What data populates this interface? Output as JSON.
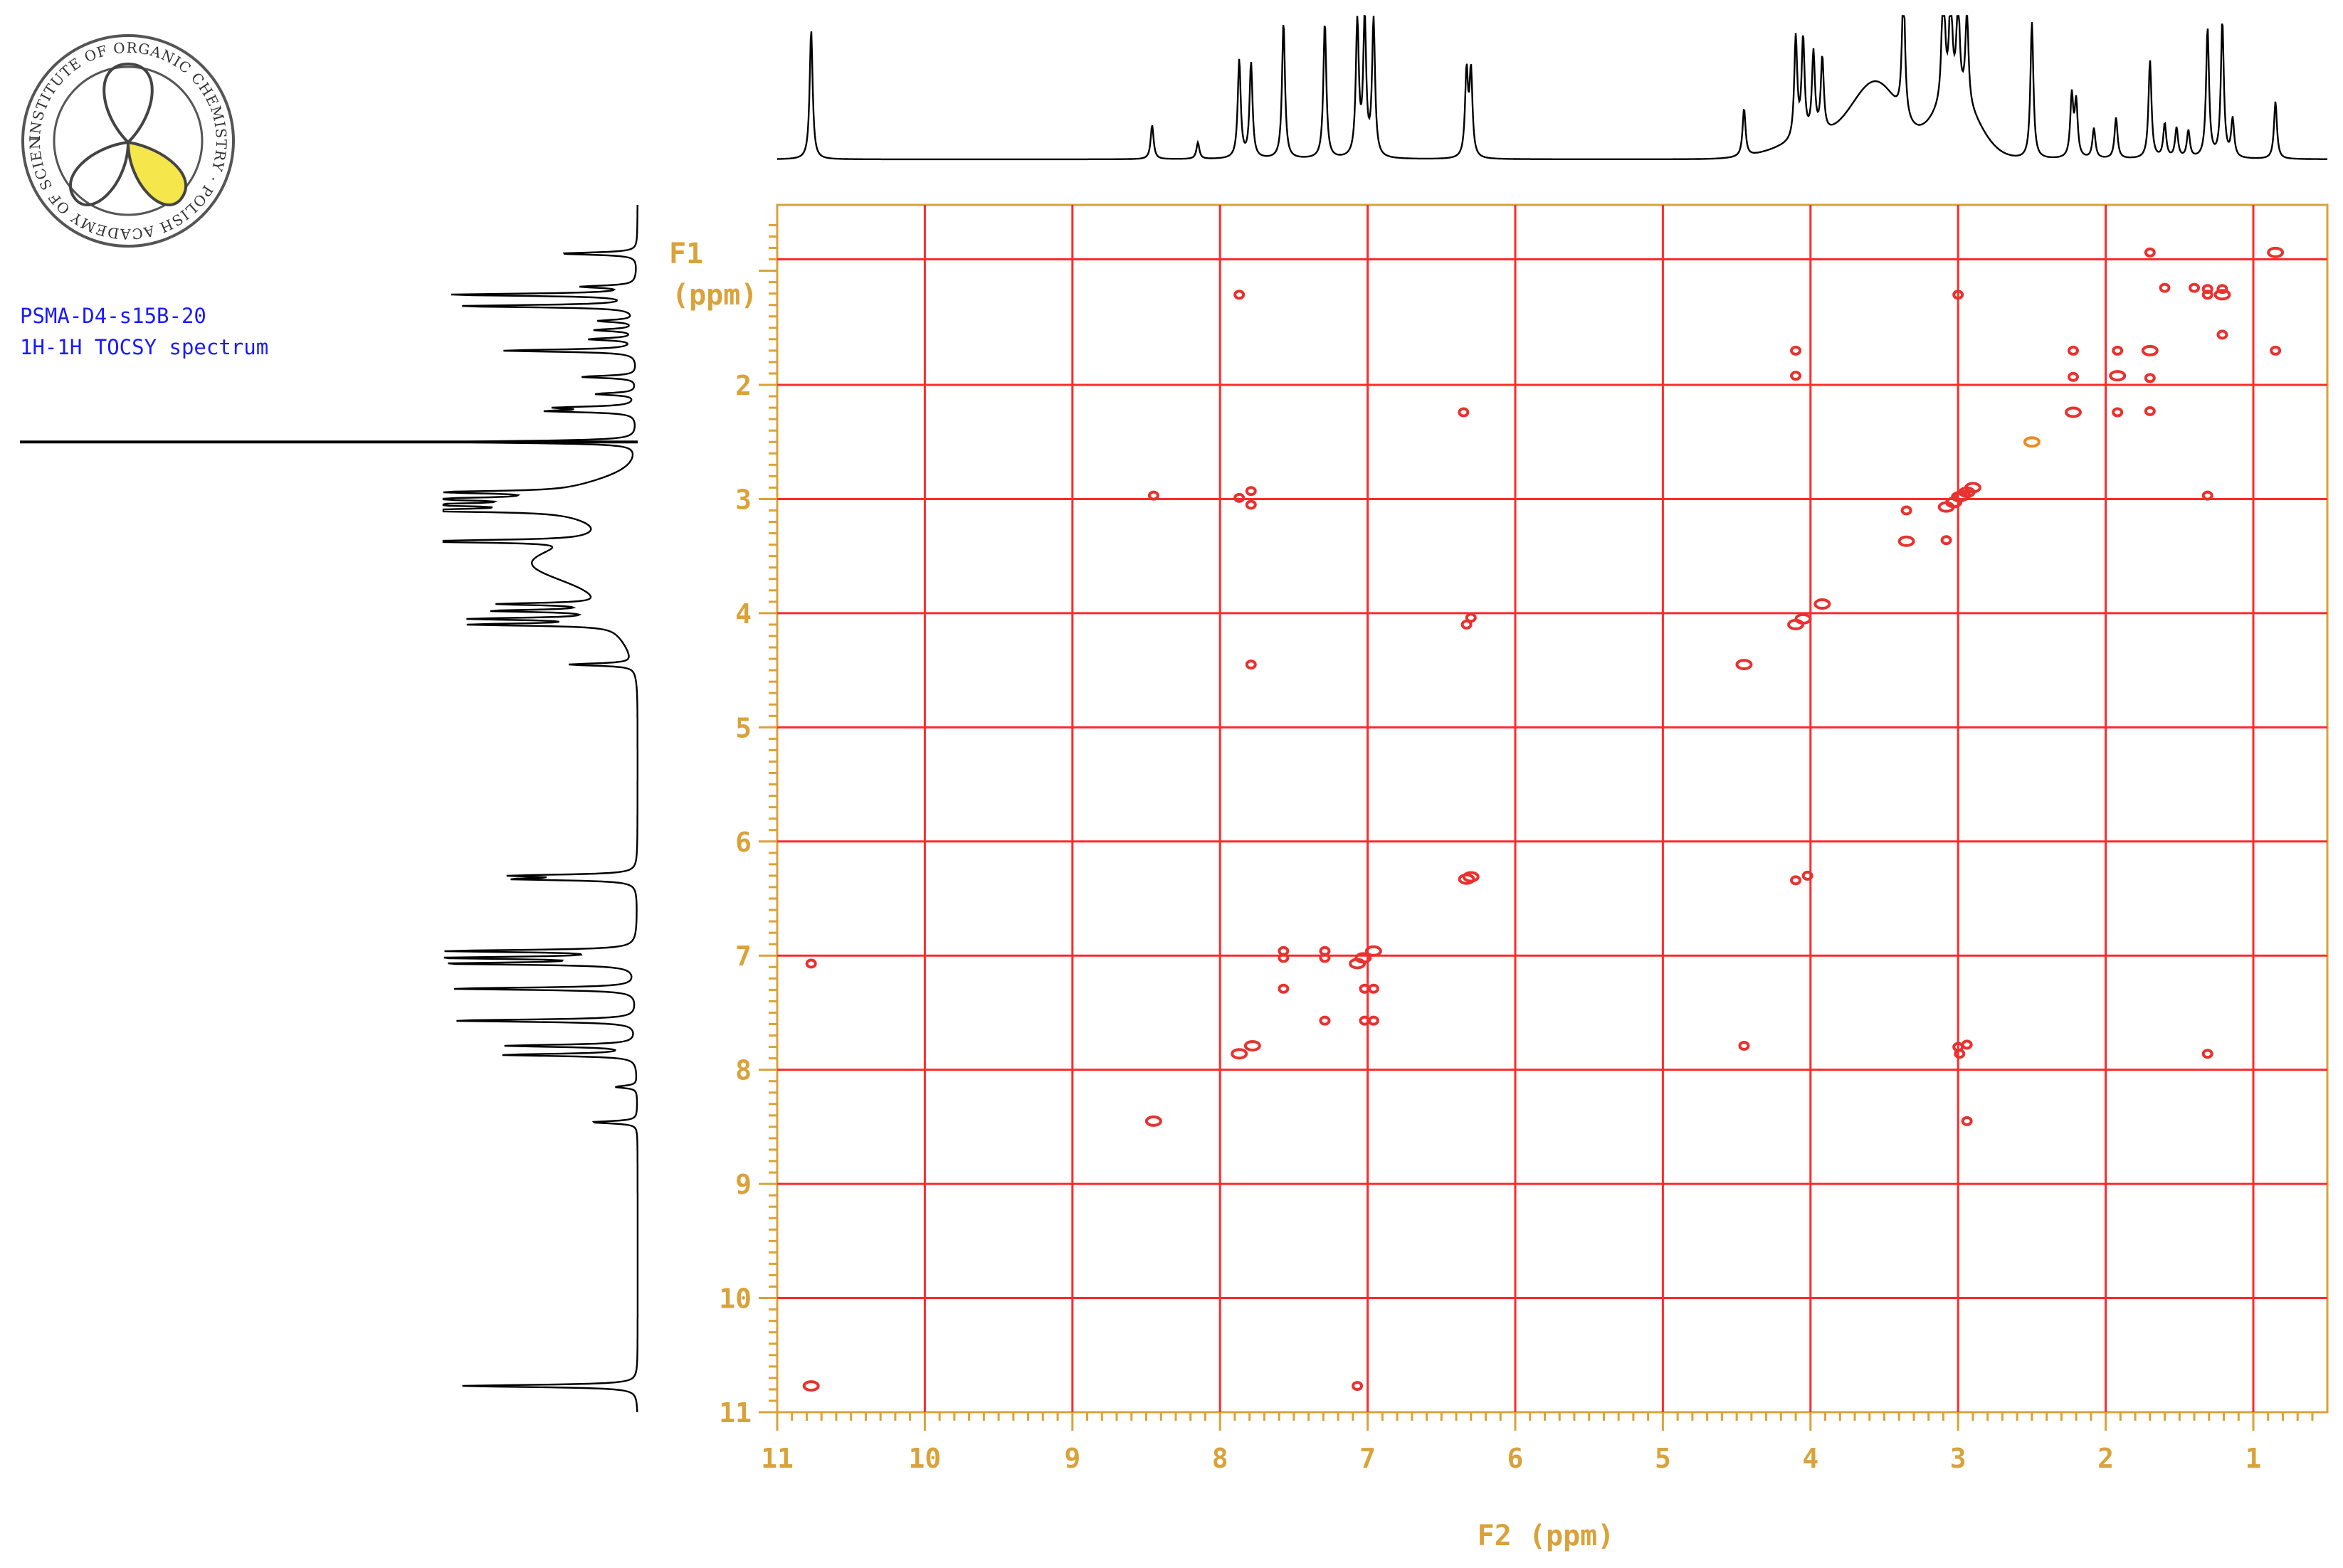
{
  "logo": {
    "text": "INSTITUTE OF ORGANIC CHEMISTRY · POLISH ACADEMY OF SCIENCES",
    "lobe_color": "#f4e64b"
  },
  "sample": {
    "name": "PSMA-D4-s15B-20",
    "experiment": "1H-1H TOCSY spectrum"
  },
  "chart_data": {
    "type": "scatter",
    "subtype": "2D NMR TOCSY contour plot with 1D projections",
    "xlabel": "F2 (ppm)",
    "ylabel_line1": "F1",
    "ylabel_line2": "(ppm)",
    "xlim": [
      11,
      0.5
    ],
    "ylim": [
      0.55,
      11
    ],
    "x_ticks": [
      11,
      10,
      9,
      8,
      7,
      6,
      5,
      4,
      3,
      2,
      1
    ],
    "y_ticks": [
      2,
      3,
      4,
      5,
      6,
      7,
      8,
      9,
      10,
      11
    ],
    "x_tick_labels": [
      "11",
      "10",
      "9",
      "8",
      "7",
      "6",
      "5",
      "4",
      "3",
      "2",
      "1"
    ],
    "y_tick_labels": [
      "2",
      "3",
      "4",
      "5",
      "6",
      "7",
      "8",
      "9",
      "10",
      "11"
    ],
    "extra_grid_y": 0.9,
    "grid": true,
    "colors": {
      "grid": "#ff2a2a",
      "frame": "#d9a23a",
      "cross_peak": "#e8322f",
      "diagonal_peak": "#e8322f",
      "orange_peak": "#f08a1c",
      "trace": "#000000"
    },
    "peaks": [
      [
        10.77,
        7.07
      ],
      [
        7.07,
        10.77
      ],
      [
        10.77,
        10.77
      ],
      [
        8.45,
        2.97
      ],
      [
        8.45,
        8.45
      ],
      [
        2.94,
        8.45
      ],
      [
        7.87,
        7.86
      ],
      [
        7.87,
        2.99
      ],
      [
        7.87,
        1.21
      ],
      [
        7.78,
        7.79
      ],
      [
        7.79,
        2.93
      ],
      [
        7.79,
        3.05
      ],
      [
        7.79,
        4.45
      ],
      [
        7.57,
        6.96
      ],
      [
        7.57,
        7.02
      ],
      [
        7.57,
        7.29
      ],
      [
        7.29,
        6.96
      ],
      [
        7.29,
        7.02
      ],
      [
        7.29,
        7.57
      ],
      [
        7.07,
        7.07
      ],
      [
        7.03,
        7.02
      ],
      [
        7.02,
        7.29
      ],
      [
        7.02,
        7.57
      ],
      [
        6.96,
        6.96
      ],
      [
        6.96,
        7.29
      ],
      [
        6.96,
        7.57
      ],
      [
        6.33,
        6.33
      ],
      [
        6.3,
        6.31
      ],
      [
        6.33,
        4.1
      ],
      [
        6.3,
        4.04
      ],
      [
        6.35,
        2.24
      ],
      [
        4.45,
        4.45
      ],
      [
        4.45,
        7.79
      ],
      [
        4.1,
        4.1
      ],
      [
        4.05,
        4.05
      ],
      [
        3.92,
        3.92
      ],
      [
        4.1,
        6.34
      ],
      [
        4.02,
        6.3
      ],
      [
        4.1,
        1.7
      ],
      [
        4.1,
        1.92
      ],
      [
        3.35,
        3.1
      ],
      [
        3.35,
        3.37
      ],
      [
        3.08,
        3.07
      ],
      [
        3.08,
        3.36
      ],
      [
        3.03,
        3.03
      ],
      [
        2.99,
        2.98
      ],
      [
        2.97,
        2.97
      ],
      [
        2.94,
        2.94
      ],
      [
        2.9,
        2.9
      ],
      [
        3.0,
        1.21
      ],
      [
        3.0,
        7.8
      ],
      [
        2.99,
        7.86
      ],
      [
        2.94,
        7.78
      ],
      [
        2.5,
        2.5
      ],
      [
        2.22,
        2.24
      ],
      [
        2.22,
        1.93
      ],
      [
        2.22,
        1.7
      ],
      [
        1.92,
        1.92
      ],
      [
        1.92,
        1.7
      ],
      [
        1.92,
        2.24
      ],
      [
        1.7,
        1.7
      ],
      [
        1.7,
        1.94
      ],
      [
        1.7,
        2.23
      ],
      [
        1.7,
        0.84
      ],
      [
        1.31,
        1.21
      ],
      [
        1.31,
        1.16
      ],
      [
        1.21,
        1.21
      ],
      [
        1.21,
        1.16
      ],
      [
        1.31,
        2.97
      ],
      [
        1.31,
        7.86
      ],
      [
        1.21,
        1.56
      ],
      [
        1.4,
        1.15
      ],
      [
        1.6,
        1.15
      ],
      [
        0.85,
        0.84
      ],
      [
        0.85,
        1.7
      ]
    ],
    "projection_peaks": [
      [
        10.77,
        0.95
      ],
      [
        8.46,
        0.25
      ],
      [
        8.15,
        0.12
      ],
      [
        7.87,
        0.72
      ],
      [
        7.79,
        0.7
      ],
      [
        7.57,
        1.0
      ],
      [
        7.29,
        1.0
      ],
      [
        7.07,
        1.0
      ],
      [
        7.02,
        1.0
      ],
      [
        6.96,
        1.0
      ],
      [
        6.33,
        0.62
      ],
      [
        6.3,
        0.62
      ],
      [
        4.45,
        0.35
      ],
      [
        4.1,
        0.75
      ],
      [
        4.05,
        0.72
      ],
      [
        3.98,
        0.6
      ],
      [
        3.92,
        0.55
      ],
      [
        3.37,
        1.0
      ],
      [
        3.1,
        1.0
      ],
      [
        3.05,
        0.75
      ],
      [
        3.0,
        0.72
      ],
      [
        2.94,
        0.68
      ],
      [
        2.5,
        1.0
      ],
      [
        2.23,
        0.45
      ],
      [
        2.2,
        0.4
      ],
      [
        2.08,
        0.22
      ],
      [
        1.93,
        0.3
      ],
      [
        1.7,
        0.72
      ],
      [
        1.6,
        0.25
      ],
      [
        1.52,
        0.22
      ],
      [
        1.44,
        0.2
      ],
      [
        1.31,
        0.95
      ],
      [
        1.21,
        1.0
      ],
      [
        1.14,
        0.28
      ],
      [
        0.85,
        0.42
      ]
    ],
    "projection_humps": [
      [
        3.55,
        0.52,
        0.16
      ],
      [
        3.02,
        0.45,
        0.15
      ],
      [
        3.95,
        0.15,
        0.25
      ]
    ]
  }
}
